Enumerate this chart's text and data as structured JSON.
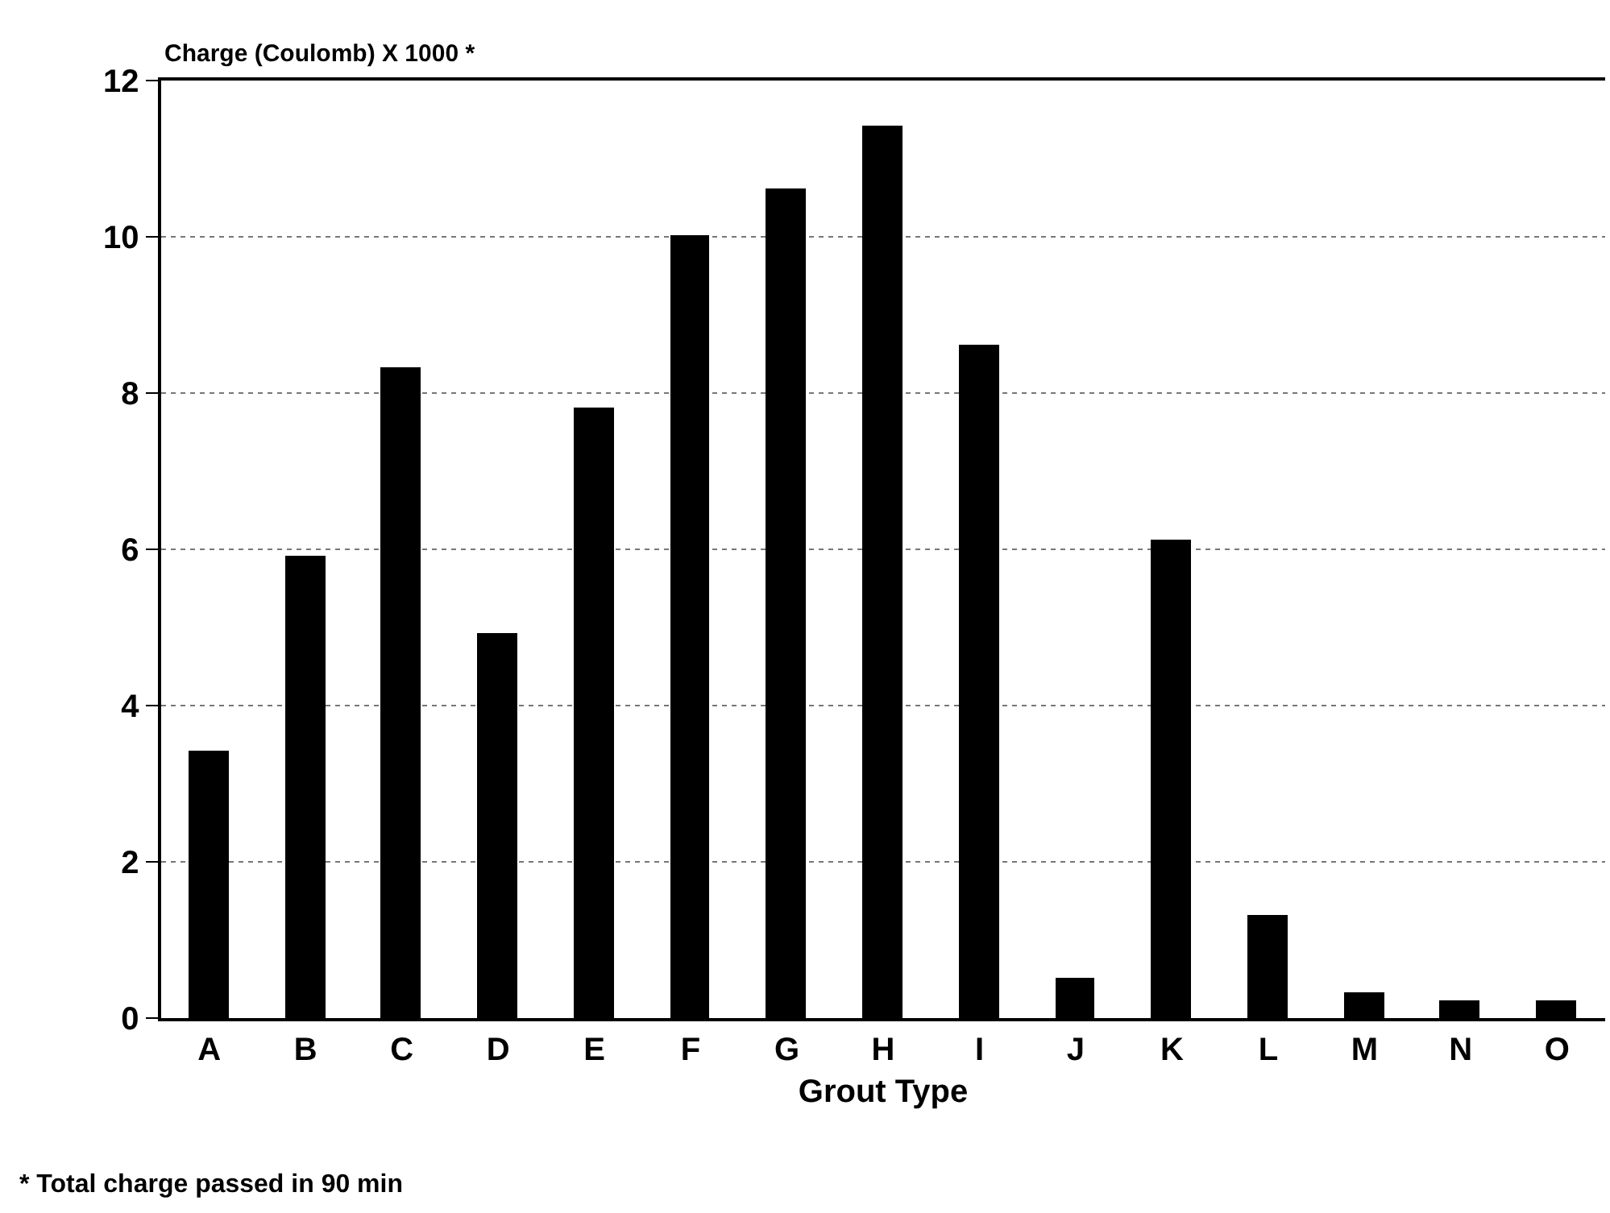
{
  "chart_data": {
    "type": "bar",
    "ylabel": "Charge (Coulomb) X 1000 *",
    "xlabel": "Grout Type",
    "categories": [
      "A",
      "B",
      "C",
      "D",
      "E",
      "F",
      "G",
      "H",
      "I",
      "J",
      "K",
      "L",
      "M",
      "N",
      "O"
    ],
    "values": [
      3.4,
      5.9,
      8.3,
      4.9,
      7.8,
      10.0,
      10.6,
      11.4,
      8.6,
      0.5,
      6.1,
      1.3,
      0.3,
      0.2,
      0.2
    ],
    "color": "#000000",
    "ylim": [
      0,
      12
    ],
    "yticks": [
      0,
      2,
      4,
      6,
      8,
      10,
      12
    ],
    "grid": "y",
    "legend": false,
    "annotations": [
      "* Total charge passed in 90 min"
    ]
  }
}
